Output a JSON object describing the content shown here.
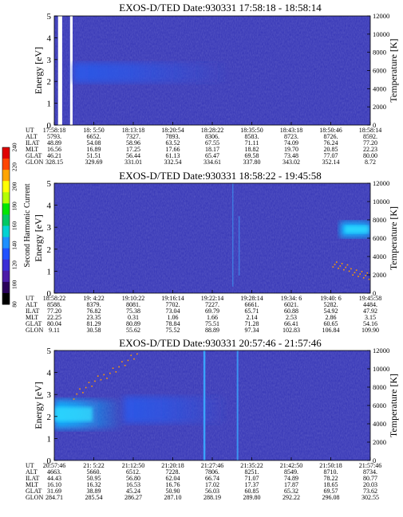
{
  "figure": {
    "colorbar": {
      "label": "Second Harmonic Current",
      "ticks": [
        "80",
        "100",
        "120",
        "140",
        "160",
        "180",
        "200",
        "220",
        "240"
      ],
      "colors": [
        "#000000",
        "#2a005a",
        "#4b1ca8",
        "#3b2fd6",
        "#2152ff",
        "#1e90ff",
        "#00d2d2",
        "#00c864",
        "#00e600",
        "#b4ff00",
        "#ffff00",
        "#ffa500",
        "#ff4500",
        "#e00000"
      ]
    },
    "palette": {
      "background": "#3a3ab8",
      "noise": "#2c2ca8",
      "band_dark": "#2b58e8",
      "band_bright": "#0fb4ff",
      "band_core": "#30e0ff",
      "spike": "#3aa8ff",
      "dots": "#ff9a00",
      "data_gap": "#ffffff"
    }
  },
  "chart_data": [
    {
      "type": "heatmap",
      "title": "EXOS-D/TED   Date:930331   17:58:18 - 18:58:14",
      "ylabel": "Energy [eV]",
      "ylabel_right": "Temperature [K]",
      "ylim": [
        0,
        5
      ],
      "y_ticks": [
        "0",
        "1",
        "2",
        "3",
        "4",
        "5"
      ],
      "right_ylim": [
        0,
        12000
      ],
      "right_ticks": [
        "0",
        "2000",
        "4000",
        "6000",
        "8000",
        "10000",
        "12000"
      ],
      "orbit_table": {
        "row_labels": [
          "UT",
          "ALT",
          "ILAT",
          "MLT",
          "GLAT",
          "GLON"
        ],
        "columns": [
          [
            "17:58:18",
            "5793.",
            "48.89",
            "16.56",
            "46.21",
            "328.15"
          ],
          [
            "18: 5:50",
            "6652.",
            "54.08",
            "16.89",
            "51.51",
            "329.69"
          ],
          [
            "18:13:18",
            "7327.",
            "58.96",
            "17.25",
            "56.44",
            "331.01"
          ],
          [
            "18:20:54",
            "7893.",
            "63.52",
            "17.66",
            "61.13",
            "332.54"
          ],
          [
            "18:28:22",
            "8306.",
            "67.55",
            "18.17",
            "65.47",
            "334.61"
          ],
          [
            "18:35:50",
            "8583.",
            "71.11",
            "18.82",
            "69.58",
            "337.80"
          ],
          [
            "18:43:18",
            "8723.",
            "74.09",
            "19.70",
            "73.48",
            "343.02"
          ],
          [
            "18:50:46",
            "8726.",
            "76.24",
            "20.85",
            "77.07",
            "352.14"
          ],
          [
            "18:58:14",
            "8592.",
            "77.20",
            "22.23",
            "80.00",
            "8.72"
          ]
        ]
      },
      "features": [
        {
          "kind": "data_gap",
          "x": [
            0.012,
            0.025
          ]
        },
        {
          "kind": "data_gap",
          "x": [
            0.05,
            0.058
          ]
        },
        {
          "kind": "band",
          "x": [
            0.06,
            0.55
          ],
          "energy_center": 2.4,
          "energy_width": 0.9,
          "intensity": "medium",
          "fade": true
        }
      ]
    },
    {
      "type": "heatmap",
      "title": "EXOS-D/TED   Date:930331   18:58:22 - 19:45:58",
      "ylabel": "Energy [eV]",
      "ylabel_right": "Temperature [K]",
      "ylim": [
        0,
        5
      ],
      "y_ticks": [
        "0",
        "1",
        "2",
        "3",
        "4",
        "5"
      ],
      "right_ylim": [
        0,
        12000
      ],
      "right_ticks": [
        "0",
        "2000",
        "4000",
        "6000",
        "8000",
        "10000",
        "12000"
      ],
      "orbit_table": {
        "row_labels": [
          "UT",
          "ALT",
          "ILAT",
          "MLT",
          "GLAT",
          "GLON"
        ],
        "columns": [
          [
            "18:58:22",
            "8588.",
            "77.20",
            "22.25",
            "80.04",
            "9.11"
          ],
          [
            "19: 4:22",
            "8379.",
            "76.82",
            "23.35",
            "81.29",
            "30.58"
          ],
          [
            "19:10:22",
            "8081.",
            "75.38",
            "0.31",
            "80.89",
            "55.62"
          ],
          [
            "19:16:14",
            "7702.",
            "73.04",
            "1.06",
            "78.84",
            "75.52"
          ],
          [
            "19:22:14",
            "7227.",
            "69.79",
            "1.66",
            "75.51",
            "88.89"
          ],
          [
            "19:28:14",
            "6661.",
            "65.71",
            "2.14",
            "71.28",
            "97.34"
          ],
          [
            "19:34: 6",
            "6021.",
            "60.88",
            "2.53",
            "66.41",
            "102.83"
          ],
          [
            "19:40: 6",
            "5282.",
            "54.92",
            "2.86",
            "60.65",
            "106.84"
          ],
          [
            "19:45:58",
            "4484.",
            "47.92",
            "3.15",
            "54.16",
            "109.90"
          ]
        ]
      },
      "features": [
        {
          "kind": "spike",
          "x": 0.565,
          "energy_range": [
            0.3,
            5
          ],
          "intensity": "low"
        },
        {
          "kind": "spike",
          "x": 0.585,
          "energy_range": [
            0.8,
            3.5
          ],
          "intensity": "low"
        },
        {
          "kind": "band",
          "x": [
            0.905,
            1.0
          ],
          "energy_center": 2.9,
          "energy_width": 0.7,
          "intensity": "high",
          "fade": false
        },
        {
          "kind": "dots",
          "x": [
            0.88,
            1.0
          ],
          "energy_from": 1.4,
          "energy_to": 0.7
        }
      ]
    },
    {
      "type": "heatmap",
      "title": "EXOS-D/TED   Date:930331   20:57:46 - 21:57:46",
      "ylabel": "Energy [eV]",
      "ylabel_right": "Temperature [K]",
      "ylim": [
        0,
        5
      ],
      "y_ticks": [
        "0",
        "1",
        "2",
        "3",
        "4",
        "5"
      ],
      "right_ylim": [
        0,
        12000
      ],
      "right_ticks": [
        "0",
        "2000",
        "4000",
        "6000",
        "8000",
        "10000",
        "12000"
      ],
      "orbit_table": {
        "row_labels": [
          "UT",
          "ALT",
          "ILAT",
          "MLT",
          "GLAT",
          "GLON"
        ],
        "columns": [
          [
            "20:57:46",
            "4663.",
            "44.43",
            "16.10",
            "31.69",
            "284.71"
          ],
          [
            "21: 5:22",
            "5660.",
            "50.95",
            "16.32",
            "38.89",
            "285.54"
          ],
          [
            "21:12:50",
            "6512.",
            "56.80",
            "16.53",
            "45.24",
            "286.27"
          ],
          [
            "21:20:18",
            "7228.",
            "62.04",
            "16.76",
            "50.90",
            "287.10"
          ],
          [
            "21:27:46",
            "7806.",
            "66.74",
            "17.02",
            "56.03",
            "288.19"
          ],
          [
            "21:35:22",
            "8251.",
            "71.07",
            "17.37",
            "60.85",
            "289.80"
          ],
          [
            "21:42:50",
            "8549.",
            "74.89",
            "17.87",
            "65.32",
            "292.22"
          ],
          [
            "21:50:18",
            "8710.",
            "78.22",
            "18.65",
            "69.57",
            "296.08"
          ],
          [
            "21:57:46",
            "8734.",
            "80.77",
            "20.03",
            "73.62",
            "302.55"
          ]
        ]
      },
      "features": [
        {
          "kind": "band",
          "x": [
            0.0,
            0.22
          ],
          "energy_center": 2.1,
          "energy_width": 1.3,
          "intensity": "high",
          "fade": true
        },
        {
          "kind": "band",
          "x": [
            0.22,
            0.55
          ],
          "energy_center": 2.3,
          "energy_width": 1.2,
          "intensity": "medium",
          "fade": true
        },
        {
          "kind": "dots",
          "x": [
            0.06,
            0.26
          ],
          "energy_from": 3.0,
          "energy_to": 4.8
        },
        {
          "kind": "spike",
          "x": 0.475,
          "energy_range": [
            0,
            5
          ],
          "intensity": "high"
        },
        {
          "kind": "spike",
          "x": 0.58,
          "energy_range": [
            0,
            5
          ],
          "intensity": "medium"
        }
      ]
    }
  ]
}
